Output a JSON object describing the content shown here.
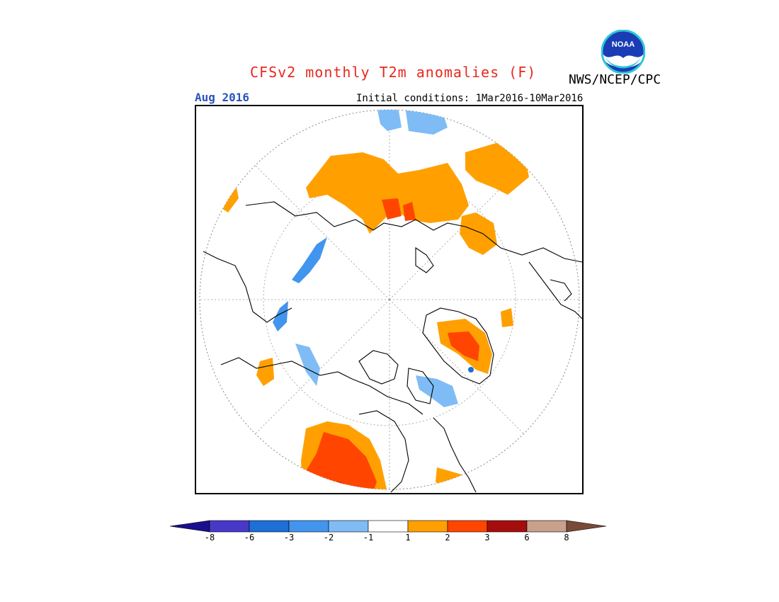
{
  "header": {
    "title": "CFSv2 monthly T2m anomalies (F)",
    "agency": "NWS/NCEP/CPC",
    "month": "Aug 2016",
    "initial_conditions": "Initial conditions: 1Mar2016-10Mar2016",
    "logo_text": "NOAA"
  },
  "legend": {
    "labels": [
      "-8",
      "-6",
      "-3",
      "-2",
      "-1",
      "1",
      "2",
      "3",
      "6",
      "8"
    ],
    "colors": [
      "#1a0f8c",
      "#4838c8",
      "#1e6fd6",
      "#4295ee",
      "#7fbcf5",
      "#ffffff",
      "#ffa000",
      "#ff4500",
      "#a50d0d",
      "#c9a08c",
      "#7a4a38"
    ]
  },
  "palette": {
    "title": "#e8281e",
    "month": "#2a52be",
    "warm1": "#ffa000",
    "warm2": "#ff4500",
    "warm3": "#a50d0d",
    "cool1": "#7fbcf5",
    "cool2": "#4295ee",
    "cool3": "#1e6fd6"
  }
}
